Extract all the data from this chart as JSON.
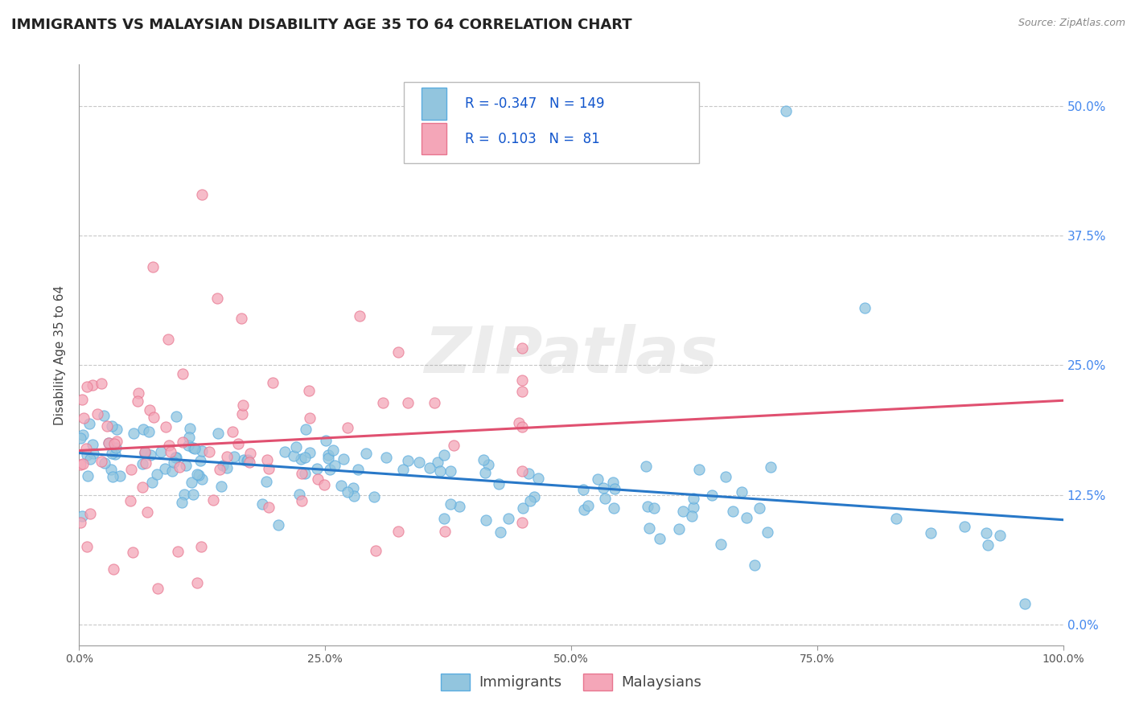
{
  "title": "IMMIGRANTS VS MALAYSIAN DISABILITY AGE 35 TO 64 CORRELATION CHART",
  "source": "Source: ZipAtlas.com",
  "ylabel": "Disability Age 35 to 64",
  "xlim": [
    0.0,
    1.0
  ],
  "ylim": [
    -0.02,
    0.54
  ],
  "xticks": [
    0.0,
    0.25,
    0.5,
    0.75,
    1.0
  ],
  "xtick_labels": [
    "0.0%",
    "25.0%",
    "50.0%",
    "75.0%",
    "100.0%"
  ],
  "yticks": [
    0.0,
    0.125,
    0.25,
    0.375,
    0.5
  ],
  "ytick_labels": [
    "0.0%",
    "12.5%",
    "25.0%",
    "37.5%",
    "50.0%"
  ],
  "immigrants_R": -0.347,
  "immigrants_N": 149,
  "malaysians_R": 0.103,
  "malaysians_N": 81,
  "blue_color": "#92c5de",
  "pink_color": "#f4a6b8",
  "blue_edge_color": "#5aace0",
  "pink_edge_color": "#e8758f",
  "blue_line_color": "#2878c8",
  "pink_line_color": "#e05070",
  "background_color": "#ffffff",
  "grid_color": "#c8c8c8",
  "watermark": "ZIPatlas",
  "legend_label_blue": "Immigrants",
  "legend_label_pink": "Malaysians",
  "title_fontsize": 13,
  "axis_label_fontsize": 11,
  "tick_fontsize": 10,
  "legend_fontsize": 12
}
